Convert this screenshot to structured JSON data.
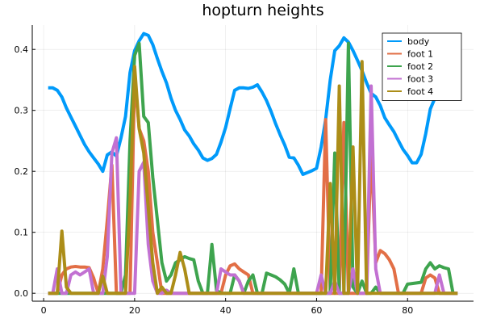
{
  "chart_data": {
    "type": "line",
    "title": "hopturn heights",
    "xlabel": "",
    "ylabel": "",
    "xlim": [
      -2.5,
      94.5
    ],
    "ylim": [
      -0.013,
      0.44
    ],
    "xticks": [
      0,
      20,
      40,
      60,
      80
    ],
    "yticks": [
      0.0,
      0.1,
      0.2,
      0.3,
      0.4
    ],
    "xtick_labels": [
      "0",
      "20",
      "40",
      "60",
      "80"
    ],
    "ytick_labels": [
      "0.0",
      "0.1",
      "0.2",
      "0.3",
      "0.4"
    ],
    "grid": true,
    "legend_position": "top-right",
    "series": [
      {
        "name": "body",
        "color": "#009AFA",
        "x": [
          1,
          2,
          3,
          4,
          5,
          6,
          7,
          8,
          9,
          10,
          11,
          12,
          13,
          14,
          15,
          16,
          17,
          18,
          19,
          20,
          21,
          22,
          23,
          24,
          25,
          26,
          27,
          28,
          29,
          30,
          31,
          32,
          33,
          34,
          35,
          36,
          37,
          38,
          39,
          40,
          41,
          42,
          43,
          44,
          45,
          46,
          47,
          48,
          49,
          50,
          51,
          52,
          53,
          54,
          55,
          56,
          57,
          58,
          59,
          60,
          61,
          62,
          63,
          64,
          65,
          66,
          67,
          68,
          69,
          70,
          71,
          72,
          73,
          74,
          75,
          76,
          77,
          78,
          79,
          80,
          81,
          82,
          83,
          84,
          85,
          86,
          87,
          88,
          89,
          90,
          91
        ],
        "y": [
          0.337,
          0.337,
          0.333,
          0.322,
          0.304,
          0.289,
          0.274,
          0.259,
          0.244,
          0.232,
          0.222,
          0.212,
          0.2,
          0.227,
          0.232,
          0.225,
          0.255,
          0.29,
          0.362,
          0.398,
          0.414,
          0.426,
          0.423,
          0.408,
          0.385,
          0.364,
          0.345,
          0.32,
          0.3,
          0.285,
          0.268,
          0.258,
          0.245,
          0.235,
          0.222,
          0.218,
          0.221,
          0.228,
          0.248,
          0.272,
          0.303,
          0.333,
          0.337,
          0.337,
          0.336,
          0.338,
          0.342,
          0.33,
          0.316,
          0.298,
          0.278,
          0.26,
          0.243,
          0.223,
          0.222,
          0.21,
          0.195,
          0.198,
          0.201,
          0.205,
          0.24,
          0.285,
          0.35,
          0.398,
          0.406,
          0.419,
          0.412,
          0.398,
          0.382,
          0.365,
          0.345,
          0.328,
          0.322,
          0.308,
          0.288,
          0.276,
          0.265,
          0.25,
          0.236,
          0.226,
          0.214,
          0.214,
          0.228,
          0.262,
          0.302,
          0.32,
          0.332,
          0.336,
          0.337,
          0.338,
          0.337
        ]
      },
      {
        "name": "foot 1",
        "color": "#E26F46",
        "x": [
          1,
          2,
          3,
          4,
          5,
          6,
          7,
          8,
          9,
          10,
          11,
          12,
          13,
          14,
          15,
          16,
          17,
          18,
          19,
          20,
          21,
          22,
          23,
          24,
          25,
          26,
          27,
          28,
          29,
          30,
          31,
          32,
          33,
          34,
          35,
          36,
          37,
          38,
          39,
          40,
          41,
          42,
          43,
          44,
          45,
          46,
          47,
          48,
          49,
          50,
          51,
          52,
          53,
          54,
          55,
          56,
          57,
          58,
          59,
          60,
          61,
          62,
          63,
          64,
          65,
          66,
          67,
          68,
          69,
          70,
          71,
          72,
          73,
          74,
          75,
          76,
          77,
          78,
          79,
          80,
          81,
          82,
          83,
          84,
          85,
          86,
          87,
          88,
          89,
          90,
          91
        ],
        "y": [
          0.0,
          0.0,
          0.0,
          0.03,
          0.04,
          0.043,
          0.044,
          0.043,
          0.043,
          0.042,
          0.025,
          0.0,
          0.04,
          0.12,
          0.21,
          0.0,
          0.0,
          0.0,
          0.0,
          0.355,
          0.27,
          0.25,
          0.2,
          0.1,
          0.05,
          0.0,
          0.0,
          0.0,
          0.0,
          0.0,
          0.0,
          0.0,
          0.0,
          0.0,
          0.0,
          0.0,
          0.0,
          0.0,
          0.0,
          0.03,
          0.045,
          0.048,
          0.04,
          0.035,
          0.03,
          0.0,
          0.0,
          0.0,
          0.0,
          0.0,
          0.0,
          0.0,
          0.0,
          0.0,
          0.0,
          0.0,
          0.0,
          0.0,
          0.0,
          0.0,
          0.0,
          0.285,
          0.0,
          0.0,
          0.0,
          0.28,
          0.0,
          0.0,
          0.0,
          0.0,
          0.0,
          0.24,
          0.05,
          0.07,
          0.065,
          0.055,
          0.04,
          0.0,
          0.0,
          0.0,
          0.0,
          0.0,
          0.0,
          0.025,
          0.03,
          0.025,
          0.0,
          0.0,
          0.0,
          0.0,
          0.0
        ]
      },
      {
        "name": "foot 2",
        "color": "#3EA44E",
        "x": [
          1,
          2,
          3,
          4,
          5,
          6,
          7,
          8,
          9,
          10,
          11,
          12,
          13,
          14,
          15,
          16,
          17,
          18,
          19,
          20,
          21,
          22,
          23,
          24,
          25,
          26,
          27,
          28,
          29,
          30,
          31,
          32,
          33,
          34,
          35,
          36,
          37,
          38,
          39,
          40,
          41,
          42,
          43,
          44,
          45,
          46,
          47,
          48,
          49,
          50,
          51,
          52,
          53,
          54,
          55,
          56,
          57,
          58,
          59,
          60,
          61,
          62,
          63,
          64,
          65,
          66,
          67,
          68,
          69,
          70,
          71,
          72,
          73,
          74,
          75,
          76,
          77,
          78,
          79,
          80,
          81,
          82,
          83,
          84,
          85,
          86,
          87,
          88,
          89,
          90,
          91
        ],
        "y": [
          0.0,
          0.0,
          0.0,
          0.0,
          0.0,
          0.0,
          0.0,
          0.0,
          0.0,
          0.0,
          0.0,
          0.0,
          0.0,
          0.0,
          0.0,
          0.0,
          0.0,
          0.03,
          0.25,
          0.39,
          0.41,
          0.29,
          0.28,
          0.19,
          0.12,
          0.05,
          0.02,
          0.03,
          0.05,
          0.055,
          0.06,
          0.057,
          0.055,
          0.02,
          0.0,
          0.0,
          0.08,
          0.005,
          0.0,
          0.0,
          0.0,
          0.03,
          0.02,
          0.0,
          0.02,
          0.03,
          0.0,
          0.0,
          0.033,
          0.03,
          0.027,
          0.022,
          0.015,
          0.0,
          0.04,
          0.0,
          0.0,
          0.0,
          0.0,
          0.0,
          0.0,
          0.0,
          0.0,
          0.23,
          0.0,
          0.0,
          0.41,
          0.01,
          0.0,
          0.02,
          0.0,
          0.0,
          0.01,
          0.0,
          0.0,
          0.0,
          0.0,
          0.0,
          0.0,
          0.015,
          0.016,
          0.017,
          0.018,
          0.04,
          0.05,
          0.04,
          0.045,
          0.042,
          0.04,
          0.0,
          0.0
        ]
      },
      {
        "name": "foot 3",
        "color": "#C271D2",
        "x": [
          1,
          2,
          3,
          4,
          5,
          6,
          7,
          8,
          9,
          10,
          11,
          12,
          13,
          14,
          15,
          16,
          17,
          18,
          19,
          20,
          21,
          22,
          23,
          24,
          25,
          26,
          27,
          28,
          29,
          30,
          31,
          32,
          33,
          34,
          35,
          36,
          37,
          38,
          39,
          40,
          41,
          42,
          43,
          44,
          45,
          46,
          47,
          48,
          49,
          50,
          51,
          52,
          53,
          54,
          55,
          56,
          57,
          58,
          59,
          60,
          61,
          62,
          63,
          64,
          65,
          66,
          67,
          68,
          69,
          70,
          71,
          72,
          73,
          74,
          75,
          76,
          77,
          78,
          79,
          80,
          81,
          82,
          83,
          84,
          85,
          86,
          87,
          88,
          89,
          90,
          91
        ],
        "y": [
          0.0,
          0.0,
          0.04,
          0.0,
          0.0,
          0.03,
          0.035,
          0.03,
          0.035,
          0.04,
          0.0,
          0.0,
          0.0,
          0.06,
          0.23,
          0.255,
          0.0,
          0.0,
          0.0,
          0.0,
          0.2,
          0.215,
          0.08,
          0.02,
          0.0,
          0.0,
          0.005,
          0.0,
          0.0,
          0.0,
          0.0,
          0.0,
          0.0,
          0.0,
          0.0,
          0.0,
          0.0,
          0.0,
          0.04,
          0.035,
          0.03,
          0.03,
          0.02,
          0.0,
          0.0,
          0.0,
          0.0,
          0.0,
          0.0,
          0.0,
          0.0,
          0.0,
          0.0,
          0.0,
          0.0,
          0.0,
          0.0,
          0.0,
          0.0,
          0.0,
          0.03,
          0.0,
          0.0,
          0.02,
          0.0,
          0.0,
          0.0,
          0.04,
          0.0,
          0.0,
          0.0,
          0.34,
          0.04,
          0.0,
          0.0,
          0.0,
          0.0,
          0.0,
          0.0,
          0.0,
          0.0,
          0.0,
          0.0,
          0.0,
          0.0,
          0.0,
          0.03,
          0.0,
          0.0,
          0.0,
          0.0
        ]
      },
      {
        "name": "foot 4",
        "color": "#AC8D18",
        "x": [
          1,
          2,
          3,
          4,
          5,
          6,
          7,
          8,
          9,
          10,
          11,
          12,
          13,
          14,
          15,
          16,
          17,
          18,
          19,
          20,
          21,
          22,
          23,
          24,
          25,
          26,
          27,
          28,
          29,
          30,
          31,
          32,
          33,
          34,
          35,
          36,
          37,
          38,
          39,
          40,
          41,
          42,
          43,
          44,
          45,
          46,
          47,
          48,
          49,
          50,
          51,
          52,
          53,
          54,
          55,
          56,
          57,
          58,
          59,
          60,
          61,
          62,
          63,
          64,
          65,
          66,
          67,
          68,
          69,
          70,
          71,
          72,
          73,
          74,
          75,
          76,
          77,
          78,
          79,
          80,
          81,
          82,
          83,
          84,
          85,
          86,
          87,
          88,
          89,
          90,
          91
        ],
        "y": [
          0.0,
          0.0,
          0.0,
          0.102,
          0.01,
          0.0,
          0.0,
          0.0,
          0.0,
          0.0,
          0.0,
          0.0,
          0.028,
          0.0,
          0.0,
          0.0,
          0.0,
          0.0,
          0.15,
          0.372,
          0.27,
          0.23,
          0.14,
          0.05,
          0.0,
          0.01,
          0.0,
          0.0,
          0.03,
          0.067,
          0.04,
          0.0,
          0.0,
          0.0,
          0.0,
          0.0,
          0.0,
          0.0,
          0.0,
          0.0,
          0.0,
          0.0,
          0.0,
          0.0,
          0.0,
          0.0,
          0.0,
          0.0,
          0.0,
          0.0,
          0.0,
          0.0,
          0.0,
          0.0,
          0.0,
          0.0,
          0.0,
          0.0,
          0.0,
          0.0,
          0.0,
          0.0,
          0.18,
          0.0,
          0.34,
          0.0,
          0.0,
          0.24,
          0.0,
          0.38,
          0.0,
          0.0,
          0.0,
          0.0,
          0.0,
          0.0,
          0.0,
          0.0,
          0.0,
          0.0,
          0.0,
          0.0,
          0.0,
          0.0,
          0.0,
          0.0,
          0.0,
          0.0,
          0.0,
          0.0,
          0.0
        ]
      }
    ]
  }
}
